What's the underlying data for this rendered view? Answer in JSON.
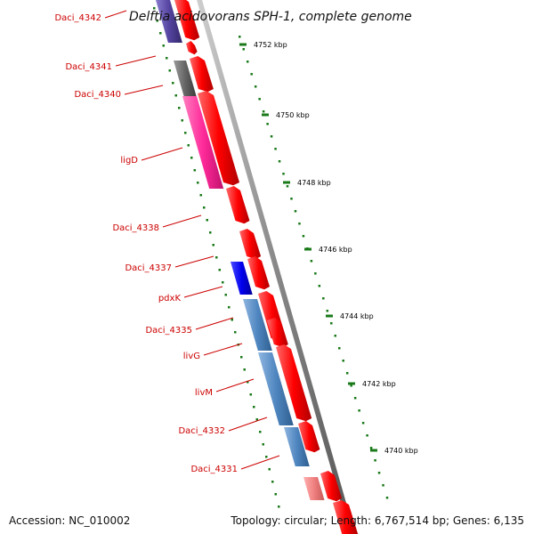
{
  "title": "Delftia acidovorans SPH-1, complete genome",
  "footer": {
    "accession": "Accession: NC_010002",
    "summary": "Topology: circular; Length: 6,767,514 bp; Genes: 6,135"
  },
  "scale_labels": [
    "4752 kbp",
    "4750 kbp",
    "4748 kbp",
    "4746 kbp",
    "4744 kbp",
    "4742 kbp",
    "4740 kbp"
  ],
  "gene_labels": [
    "Daci_4342",
    "Daci_4341",
    "Daci_4340",
    "ligD",
    "Daci_4338",
    "Daci_4337",
    "pdxK",
    "Daci_4335",
    "livG",
    "livM",
    "Daci_4332",
    "Daci_4331"
  ],
  "colors": {
    "cds_forward": "#ff0000",
    "backbone": "#888888",
    "tick": "#1a7a1a",
    "label_line": "#cc0000",
    "feature_purple": "#5544a0",
    "feature_gray": "#666666",
    "feature_pink": "#ff2a9a",
    "feature_blue": "#0000ee",
    "feature_steelblue": "#4f86c0",
    "feature_salmon": "#f08080"
  }
}
